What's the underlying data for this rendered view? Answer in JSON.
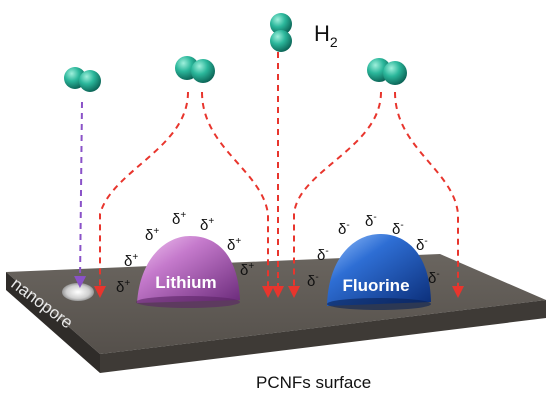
{
  "labels": {
    "hydrogen": "H",
    "hydrogen_subscript": "2",
    "lithium": "Lithium",
    "fluorine": "Fluorine",
    "nanopore": "nanopore",
    "surface": "PCNFs surface",
    "delta": "δ",
    "delta_plus": "+",
    "delta_minus": "-"
  },
  "colors": {
    "surface_top": "#5f5a55",
    "surface_side": "#3b3733",
    "lithium": "#b667c4",
    "fluorine": "#1f5fbf",
    "h2": "#1fa58e",
    "path_red": "#e8352d",
    "path_purple": "#8a52c8"
  }
}
